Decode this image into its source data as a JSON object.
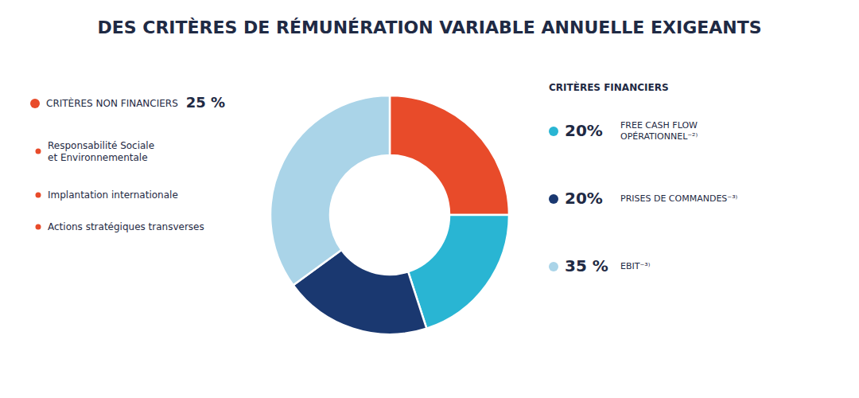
{
  "chart_data": {
    "type": "donut",
    "title": "DES CRITÈRES DE RÉMUNÉRATION VARIABLE ANNUELLE EXIGEANTS",
    "categories": [
      "CRITÈRES NON FINANCIERS",
      "FREE CASH FLOW\nOPÉRATIONNEL⁻²⁾",
      "PRISES DE COMMANDES⁻³⁾",
      "EBIT⁻³⁾"
    ],
    "values": [
      25,
      20,
      20,
      35
    ],
    "value_labels": [
      "25 %",
      "20%",
      "20%",
      "35 %"
    ],
    "colors": [
      "#e84b2a",
      "#29b5d3",
      "#1a3870",
      "#aad4e8"
    ],
    "data_labels": true,
    "annotations": [
      "CRITÈRES FINANCIERS",
      "Responsabilité Sociale\net Environnementale",
      "Implantation internationale",
      "Actions stratégiques transverses"
    ]
  }
}
